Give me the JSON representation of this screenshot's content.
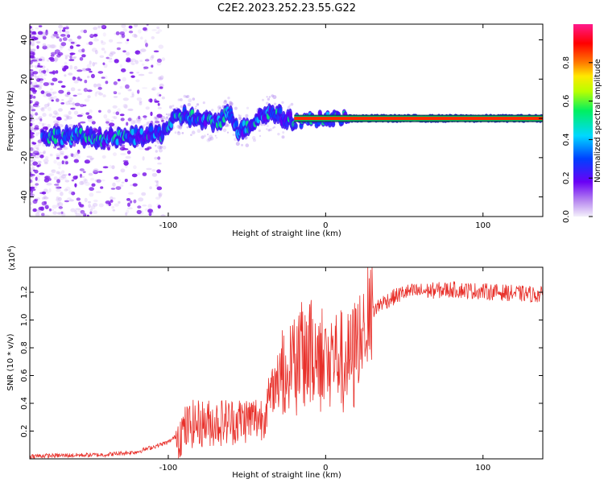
{
  "title": "C2E2.2023.252.23.55.G22",
  "chart_data": [
    {
      "type": "heatmap",
      "xlabel": "Height of straight line (km)",
      "ylabel": "Frequency (Hz)",
      "xlim": [
        -188,
        138
      ],
      "ylim": [
        -50,
        48
      ],
      "xticks": [
        -100,
        0,
        100
      ],
      "yticks": [
        -40,
        -20,
        0,
        20,
        40
      ],
      "colorbar": {
        "label": "Normalized spectral amplitude",
        "range": [
          0,
          1
        ],
        "ticks": [
          0.0,
          0.2,
          0.4,
          0.6,
          0.8
        ]
      },
      "ridge": [
        {
          "x": -175,
          "y": -9
        },
        {
          "x": -160,
          "y": -9
        },
        {
          "x": -145,
          "y": -10
        },
        {
          "x": -130,
          "y": -10
        },
        {
          "x": -118,
          "y": -9
        },
        {
          "x": -105,
          "y": -8
        },
        {
          "x": -98,
          "y": -2
        },
        {
          "x": -90,
          "y": 2
        },
        {
          "x": -80,
          "y": -1
        },
        {
          "x": -70,
          "y": -2
        },
        {
          "x": -60,
          "y": 3
        },
        {
          "x": -55,
          "y": -7
        },
        {
          "x": -48,
          "y": -3
        },
        {
          "x": -40,
          "y": 2
        },
        {
          "x": -32,
          "y": 3
        },
        {
          "x": -25,
          "y": -1
        },
        {
          "x": -15,
          "y": -1
        },
        {
          "x": 0,
          "y": 0
        },
        {
          "x": 20,
          "y": 0
        },
        {
          "x": 60,
          "y": 0
        },
        {
          "x": 100,
          "y": 0
        },
        {
          "x": 138,
          "y": 0
        }
      ]
    },
    {
      "type": "line",
      "xlabel": "Height of straight line (km)",
      "ylabel": "SNR (10 * v/v)",
      "multiplier_label": "(x10",
      "multiplier_exp": "4",
      "multiplier_close": ")",
      "xlim": [
        -188,
        138
      ],
      "ylim": [
        0,
        1.38
      ],
      "xticks": [
        -100,
        0,
        100
      ],
      "yticks": [
        0.2,
        0.4,
        0.6,
        0.8,
        1.0,
        1.2
      ],
      "color": "#e8302a",
      "envelope": [
        {
          "x": -188,
          "y": 0.02
        },
        {
          "x": -140,
          "y": 0.03
        },
        {
          "x": -120,
          "y": 0.05
        },
        {
          "x": -100,
          "y": 0.12
        },
        {
          "x": -85,
          "y": 0.25
        },
        {
          "x": -60,
          "y": 0.27
        },
        {
          "x": -40,
          "y": 0.3
        },
        {
          "x": -30,
          "y": 0.6
        },
        {
          "x": -20,
          "y": 0.75
        },
        {
          "x": -10,
          "y": 0.8
        },
        {
          "x": 0,
          "y": 0.78
        },
        {
          "x": 15,
          "y": 0.7
        },
        {
          "x": 25,
          "y": 1.0
        },
        {
          "x": 35,
          "y": 1.12
        },
        {
          "x": 50,
          "y": 1.2
        },
        {
          "x": 80,
          "y": 1.22
        },
        {
          "x": 110,
          "y": 1.2
        },
        {
          "x": 138,
          "y": 1.18
        }
      ]
    }
  ]
}
